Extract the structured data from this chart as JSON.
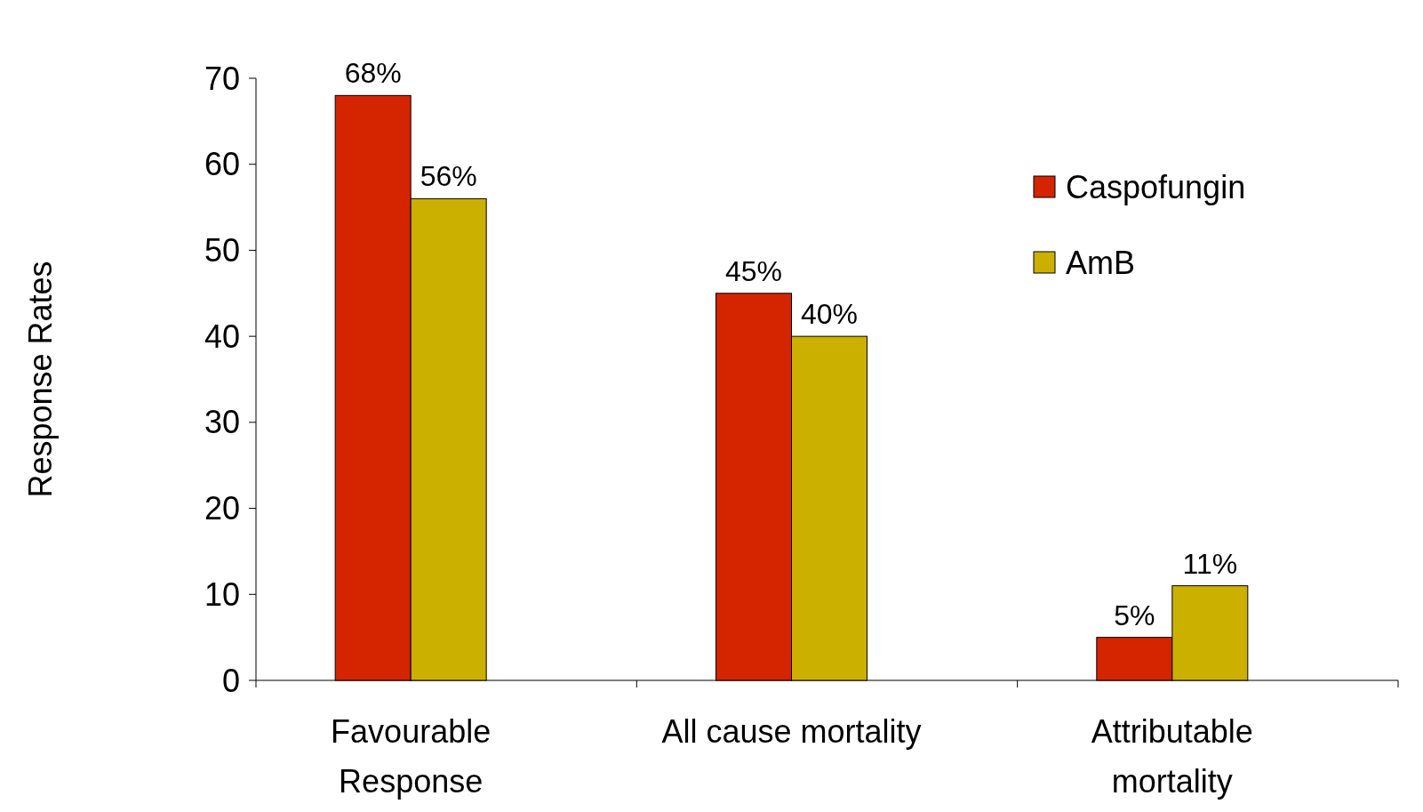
{
  "chart_data": {
    "type": "bar",
    "ylabel": "Response Rates",
    "categories": [
      "Favourable\nResponse",
      "All cause mortality",
      "Attributable\nmortality"
    ],
    "series": [
      {
        "name": "Caspofungin",
        "color": "#d42400",
        "values": [
          68,
          45,
          5
        ],
        "value_labels": [
          "68%",
          "45%",
          "5%"
        ]
      },
      {
        "name": "AmB",
        "color": "#ccb000",
        "values": [
          56,
          40,
          11
        ],
        "value_labels": [
          "56%",
          "40%",
          "11%"
        ]
      }
    ],
    "ylim": [
      0,
      70
    ],
    "yticks": [
      0,
      10,
      20,
      30,
      40,
      50,
      60,
      70
    ],
    "grid": false,
    "legend": "top right"
  }
}
